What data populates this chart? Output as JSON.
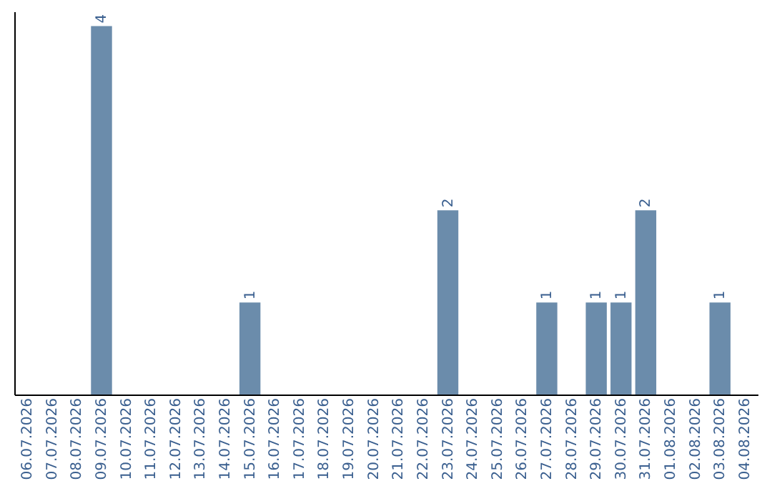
{
  "chart_data": {
    "type": "bar",
    "categories": [
      "06.07.2026",
      "07.07.2026",
      "08.07.2026",
      "09.07.2026",
      "10.07.2026",
      "11.07.2026",
      "12.07.2026",
      "13.07.2026",
      "14.07.2026",
      "15.07.2026",
      "16.07.2026",
      "17.07.2026",
      "18.07.2026",
      "19.07.2026",
      "20.07.2026",
      "21.07.2026",
      "22.07.2026",
      "23.07.2026",
      "24.07.2026",
      "25.07.2026",
      "26.07.2026",
      "27.07.2026",
      "28.07.2026",
      "29.07.2026",
      "30.07.2026",
      "31.07.2026",
      "01.08.2026",
      "02.08.2026",
      "03.08.2026",
      "04.08.2026"
    ],
    "values": [
      0,
      0,
      0,
      4,
      0,
      0,
      0,
      0,
      0,
      1,
      0,
      0,
      0,
      0,
      0,
      0,
      0,
      2,
      0,
      0,
      0,
      1,
      0,
      1,
      1,
      2,
      0,
      0,
      1,
      0
    ],
    "value_labels": [
      null,
      null,
      null,
      "4",
      null,
      null,
      null,
      null,
      null,
      "1",
      null,
      null,
      null,
      null,
      null,
      null,
      null,
      "2",
      null,
      null,
      null,
      "1",
      null,
      "1",
      "1",
      "2",
      null,
      null,
      "1",
      null
    ],
    "color": "#6b8cab",
    "ylim": [
      0,
      4.16
    ],
    "grid": false
  }
}
